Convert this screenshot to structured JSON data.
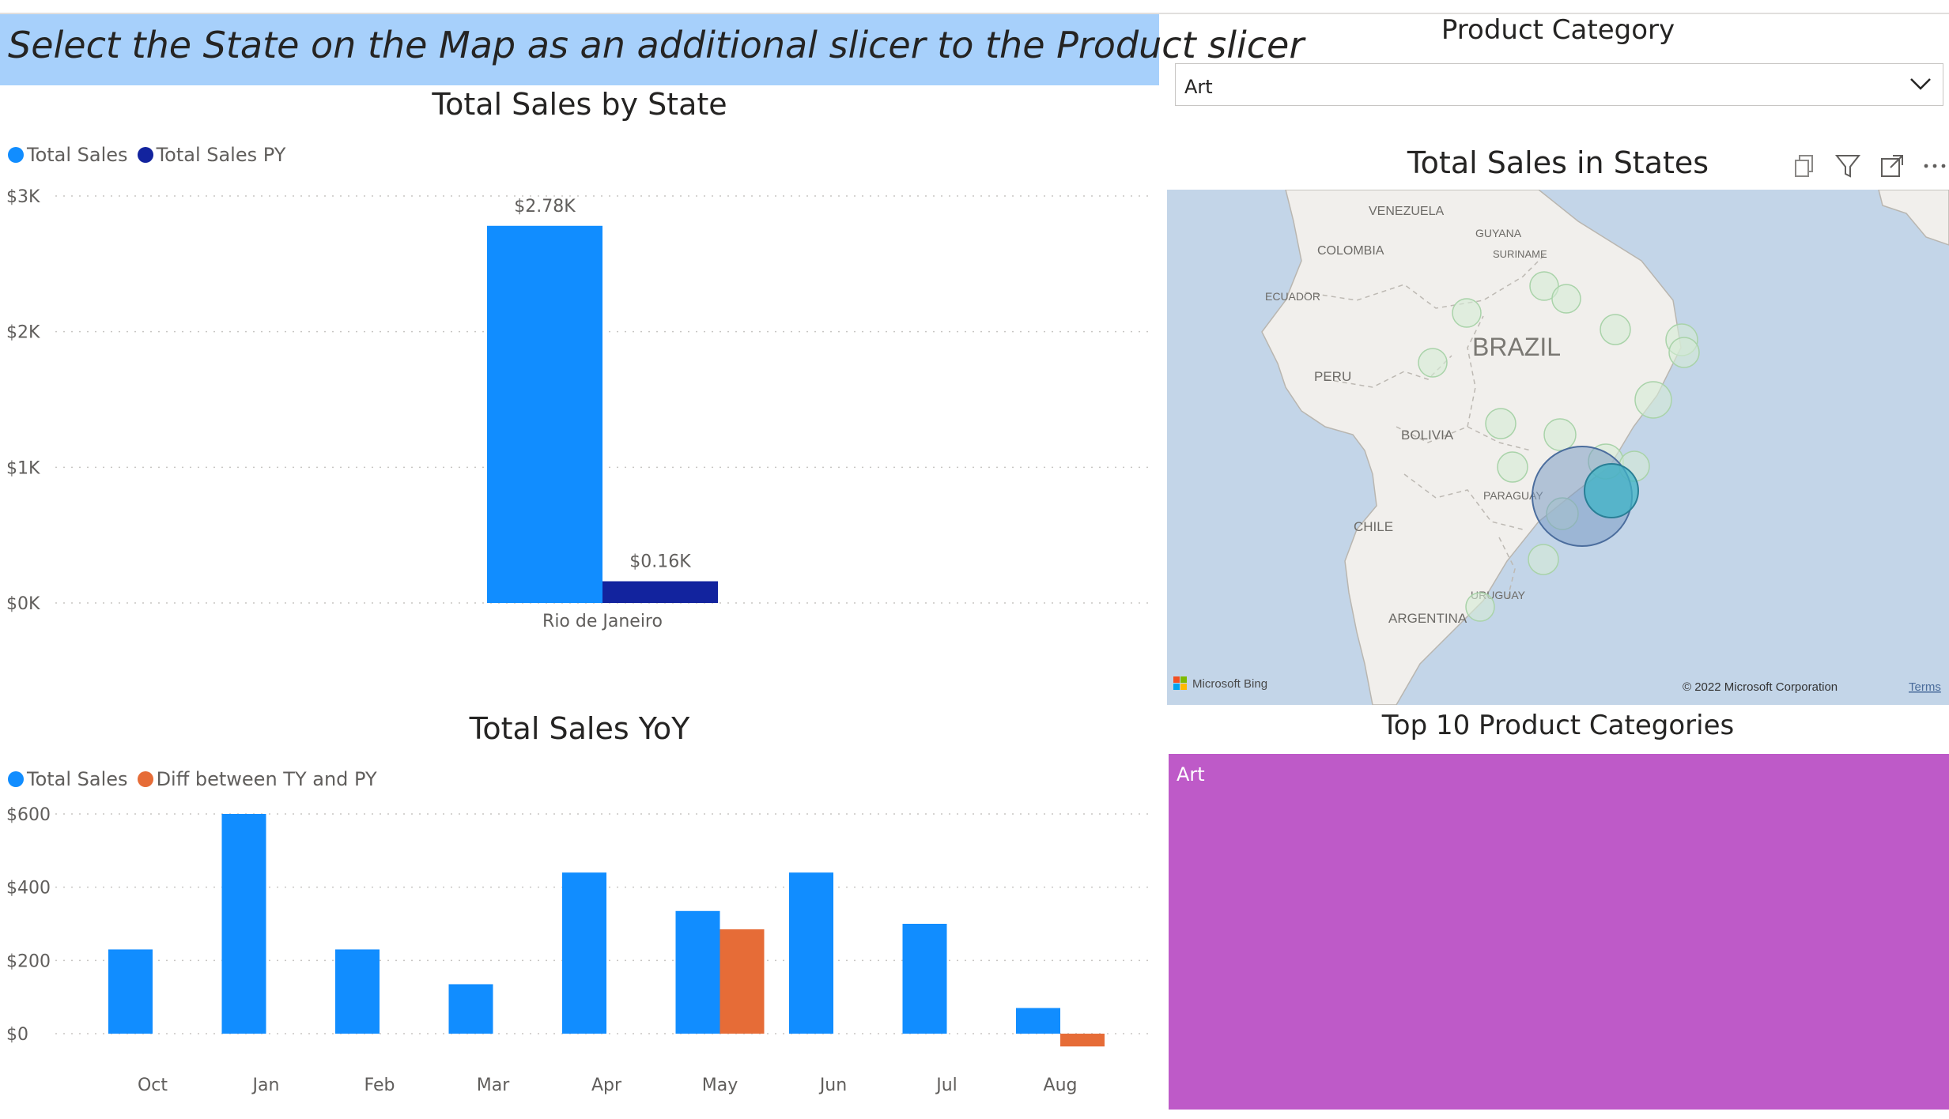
{
  "banner": {
    "text": "Select the State on the Map as an additional slicer to the Product slicer"
  },
  "slicer": {
    "title": "Product Category",
    "selected": "Art"
  },
  "chart1": {
    "title": "Total Sales by State"
  },
  "chart2": {
    "title": "Total Sales YoY"
  },
  "map": {
    "title": "Total Sales in States",
    "labels": [
      "VENEZUELA",
      "GUYANA",
      "SURINAME",
      "COLOMBIA",
      "ECUADOR",
      "BRAZIL",
      "PERU",
      "BOLIVIA",
      "PARAGUAY",
      "CHILE",
      "URUGUAY",
      "ARGENTINA"
    ],
    "brand": "Microsoft Bing",
    "copyright": "© 2022 Microsoft Corporation",
    "terms": "Terms",
    "icons": [
      "copy-icon",
      "filter-icon",
      "focus-mode-icon",
      "more-options-icon"
    ]
  },
  "treemap": {
    "title": "Top 10 Product Categories",
    "categories": [
      "Art"
    ],
    "color": "#be5ac8"
  },
  "colors": {
    "total_sales": "#118dff",
    "total_sales_py": "#12239e",
    "diff": "#e66c37",
    "banner": "#a7d0fb"
  },
  "chart_data": [
    {
      "type": "bar",
      "title": "Total Sales by State",
      "categories": [
        "Rio de Janeiro"
      ],
      "series": [
        {
          "name": "Total Sales",
          "values": [
            2780
          ],
          "labels": [
            "$2.78K"
          ]
        },
        {
          "name": "Total Sales PY",
          "values": [
            160
          ],
          "labels": [
            "$0.16K"
          ]
        }
      ],
      "yticks": [
        "$0K",
        "$1K",
        "$2K",
        "$3K"
      ],
      "ylim": [
        0,
        3000
      ],
      "legend": "top-left",
      "grid": true
    },
    {
      "type": "bar",
      "title": "Total Sales YoY",
      "categories": [
        "Oct",
        "Jan",
        "Feb",
        "Mar",
        "Apr",
        "May",
        "Jun",
        "Jul",
        "Aug"
      ],
      "series": [
        {
          "name": "Total Sales",
          "values": [
            230,
            600,
            230,
            135,
            440,
            335,
            440,
            300,
            70
          ]
        },
        {
          "name": "Diff between TY and PY",
          "values": [
            null,
            null,
            null,
            null,
            null,
            285,
            null,
            null,
            -35
          ]
        }
      ],
      "yticks": [
        "$0",
        "$200",
        "$400",
        "$600"
      ],
      "ylim": [
        -40,
        600
      ],
      "legend": "top-left",
      "grid": true
    }
  ]
}
